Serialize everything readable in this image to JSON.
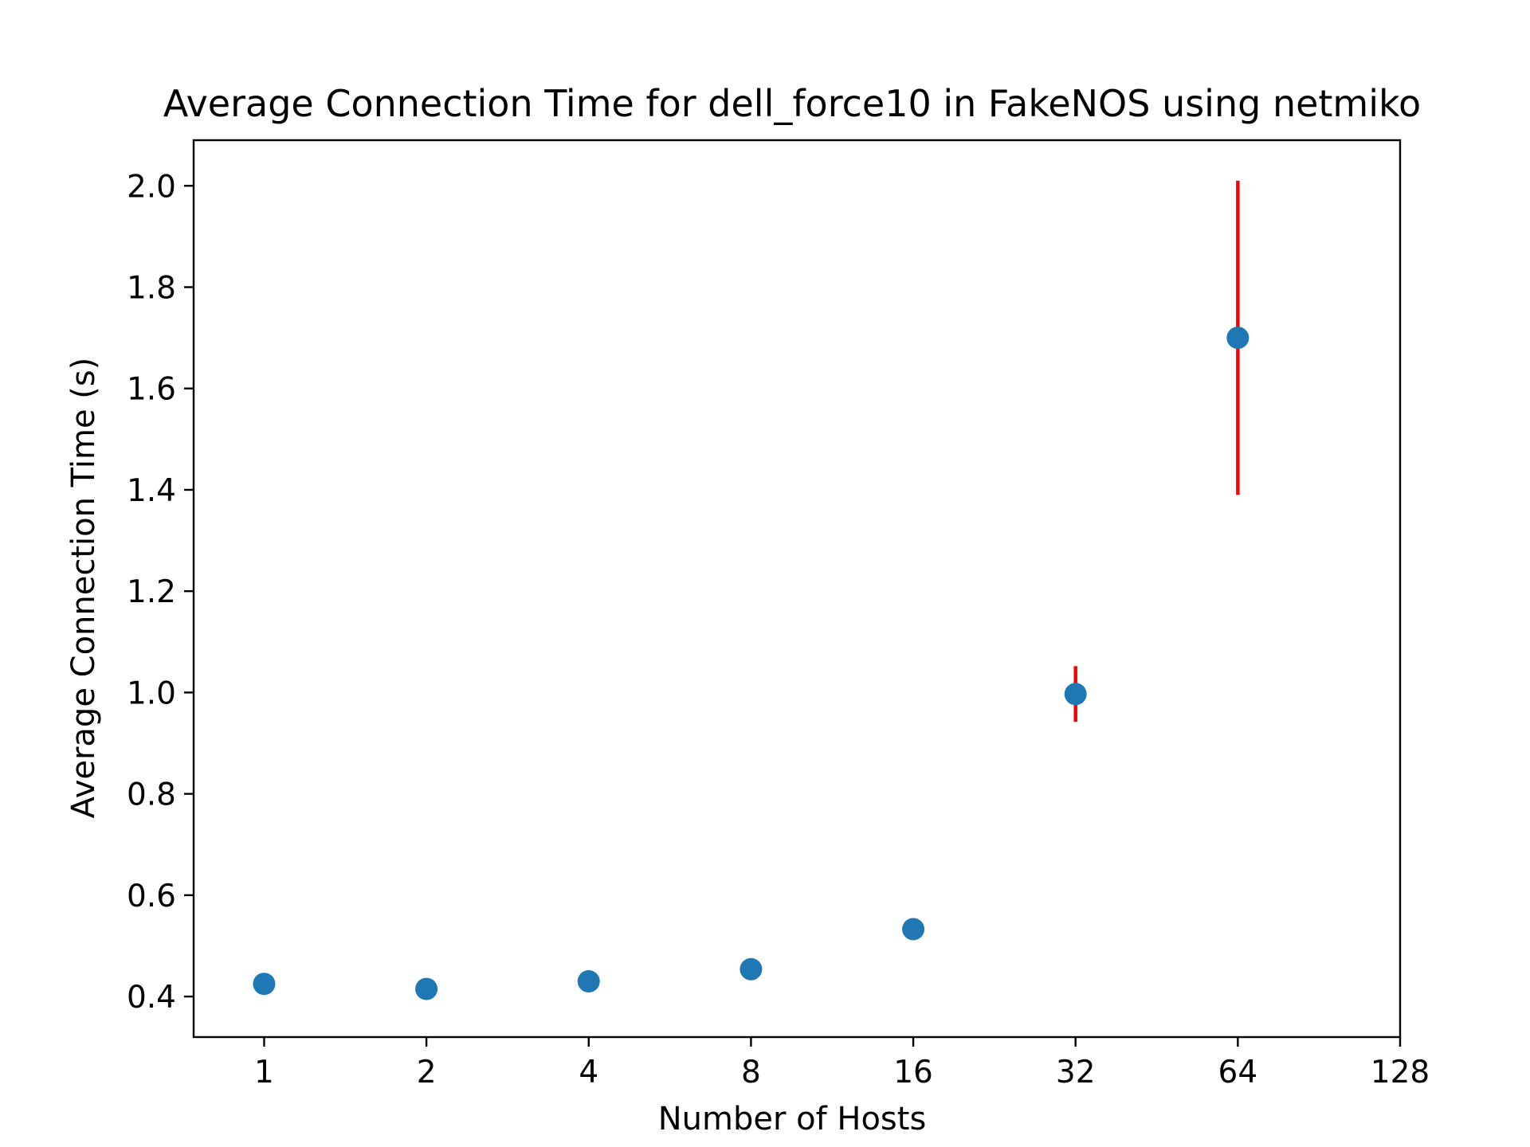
{
  "chart_data": {
    "type": "scatter",
    "title": "Average Connection Time for dell_force10 in FakeNOS using netmiko",
    "xlabel": "Number of Hosts",
    "ylabel": "Average Connection Time (s)",
    "x_scale": "log2",
    "xlim": [
      0.74,
      128
    ],
    "ylim": [
      0.32,
      2.09
    ],
    "x_ticks": [
      1,
      2,
      4,
      8,
      16,
      32,
      64,
      128
    ],
    "x_tick_labels": [
      "1",
      "2",
      "4",
      "8",
      "16",
      "32",
      "64",
      "128"
    ],
    "y_ticks": [
      0.4,
      0.6,
      0.8,
      1.0,
      1.2,
      1.4,
      1.6,
      1.8,
      2.0
    ],
    "y_tick_labels": [
      "0.4",
      "0.6",
      "0.8",
      "1.0",
      "1.2",
      "1.4",
      "1.6",
      "1.8",
      "2.0"
    ],
    "grid": false,
    "legend": "none",
    "marker_color": "#1f77b4",
    "errorbar_color": "#ff0000",
    "points": [
      {
        "x": 1,
        "y": 0.425,
        "err": 0.002
      },
      {
        "x": 2,
        "y": 0.415,
        "err": 0.002
      },
      {
        "x": 4,
        "y": 0.43,
        "err": 0.003
      },
      {
        "x": 8,
        "y": 0.454,
        "err": 0.004
      },
      {
        "x": 16,
        "y": 0.533,
        "err": 0.006
      },
      {
        "x": 32,
        "y": 0.997,
        "err": 0.055
      },
      {
        "x": 64,
        "y": 1.7,
        "err": 0.31
      }
    ]
  }
}
